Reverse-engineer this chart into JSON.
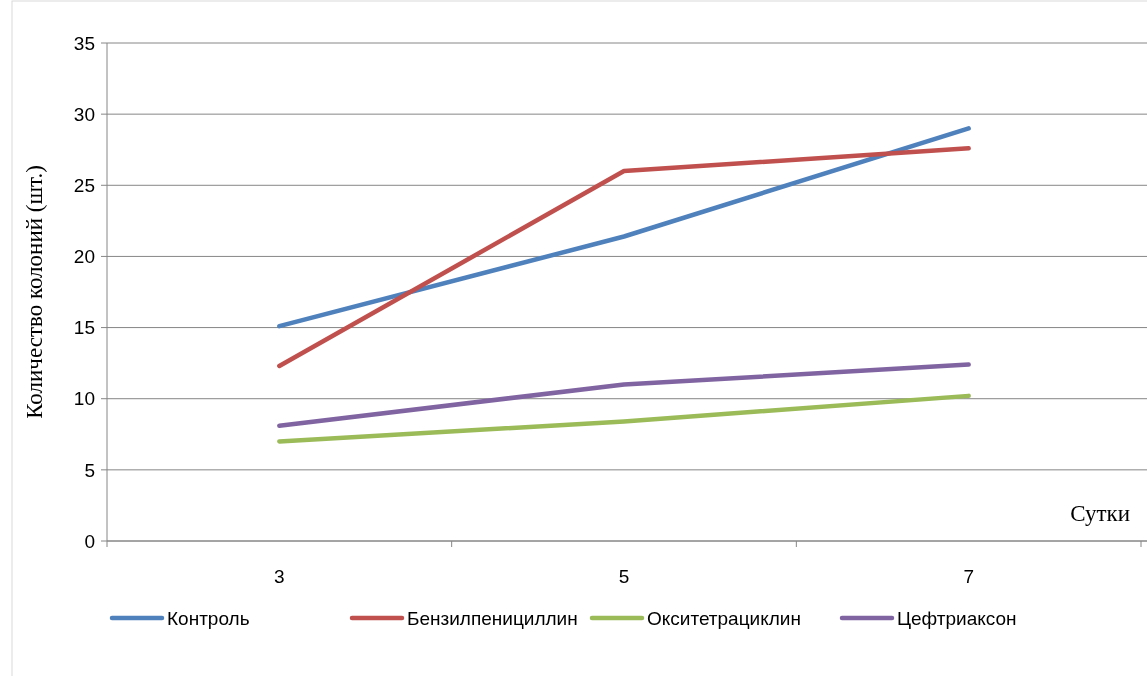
{
  "chart_data": {
    "type": "line",
    "xlabel": "Сутки",
    "ylabel": "Количество колоний (шт.)",
    "categories": [
      "3",
      "5",
      "7"
    ],
    "ylim": [
      0,
      35
    ],
    "yticks": [
      0,
      5,
      10,
      15,
      20,
      25,
      30,
      35
    ],
    "grid": "y",
    "legend": "bottom",
    "marker": "none",
    "line_style": "solid",
    "series": [
      {
        "name": "Контроль",
        "color": "#4f81bd",
        "values": [
          15.1,
          21.4,
          29.0
        ]
      },
      {
        "name": "Бензилпенициллин",
        "color": "#c0504d",
        "values": [
          12.3,
          26.0,
          27.6
        ]
      },
      {
        "name": "Окситетрациклин",
        "color": "#9bbb59",
        "values": [
          7.0,
          8.4,
          10.2
        ]
      },
      {
        "name": "Цефтриаксон",
        "color": "#8064a2",
        "values": [
          8.1,
          11.0,
          12.4
        ]
      }
    ]
  }
}
